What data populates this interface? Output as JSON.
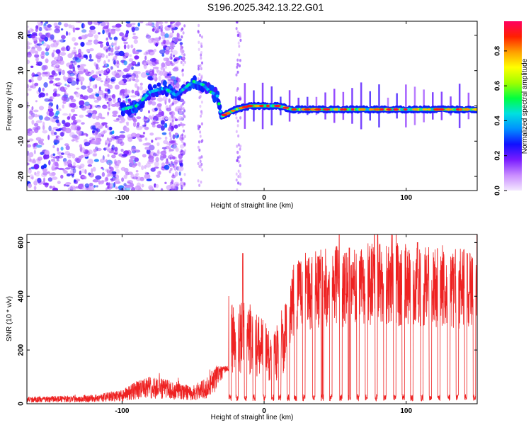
{
  "title": "S196.2025.342.13.22.G01",
  "chart_data": [
    {
      "type": "heatmap",
      "name": "spectrogram",
      "xlabel": "Height of straight line (km)",
      "ylabel": "Frequency (Hz)",
      "xlim": [
        -167,
        150
      ],
      "ylim": [
        -24,
        24
      ],
      "xticks": [
        -100,
        0,
        100
      ],
      "xtick_labels": [
        "-100",
        "0",
        "100"
      ],
      "yticks": [
        -20,
        -10,
        0,
        10,
        20
      ],
      "ytick_labels": [
        "-20",
        "-10",
        "0",
        "10",
        "20"
      ],
      "colorbar": {
        "label": "Normalized spectral amplitude",
        "range": [
          0,
          0.97
        ],
        "ticks": [
          0.0,
          0.2,
          0.4,
          0.6,
          0.8
        ],
        "tick_labels": [
          "0.0",
          "0.2",
          "0.4",
          "0.6",
          "0.8"
        ],
        "colors": [
          "#f4e8ff",
          "#c98cff",
          "#7a1cff",
          "#1010ff",
          "#0090ff",
          "#00e0e0",
          "#00ff40",
          "#a0ff00",
          "#ffff00",
          "#ffa000",
          "#ff2000",
          "#ff0060"
        ]
      },
      "ridge": {
        "x": [
          -100,
          -90,
          -80,
          -70,
          -62,
          -50,
          -43,
          -38,
          -33,
          -30,
          -25,
          -20,
          -10,
          0,
          10,
          20,
          30,
          40,
          60,
          80,
          100,
          120,
          140,
          150
        ],
        "freq_hz": [
          -1,
          0,
          4,
          5,
          3,
          7,
          6,
          4,
          3,
          -3,
          -2,
          -1,
          0,
          0,
          0,
          -1,
          -1,
          -1,
          -1,
          -1,
          -1,
          -1,
          -1,
          -1
        ]
      }
    },
    {
      "type": "line",
      "name": "snr",
      "xlabel": "Height of straight line (km)",
      "ylabel": "SNR (10 * v/v)",
      "xlim": [
        -167,
        150
      ],
      "ylim": [
        0,
        630
      ],
      "xticks": [
        -100,
        0,
        100
      ],
      "xtick_labels": [
        "-100",
        "0",
        "100"
      ],
      "yticks": [
        0,
        200,
        400,
        600
      ],
      "ytick_labels": [
        "0",
        "200",
        "400",
        "600"
      ],
      "color": "#ee2222",
      "envelope": {
        "x": [
          -167,
          -120,
          -100,
          -90,
          -80,
          -70,
          -60,
          -50,
          -40,
          -35,
          -30,
          -25,
          -20,
          -15,
          -10,
          -5,
          0,
          5,
          10,
          15,
          20,
          30,
          40,
          60,
          80,
          100,
          120,
          140,
          150
        ],
        "snr": [
          15,
          20,
          30,
          50,
          60,
          55,
          45,
          40,
          60,
          90,
          180,
          270,
          230,
          250,
          240,
          220,
          210,
          160,
          200,
          270,
          380,
          420,
          430,
          440,
          450,
          440,
          430,
          430,
          420
        ]
      },
      "dips_x": [
        -24,
        -19,
        -13,
        -7,
        0,
        6,
        11,
        17,
        22,
        28,
        35,
        41,
        47,
        54,
        60,
        66,
        72,
        79,
        85,
        92,
        98,
        104,
        111,
        117,
        123,
        130,
        136,
        142,
        148
      ],
      "peaks": [
        {
          "x": -15,
          "snr": 560
        },
        {
          "x": 41,
          "snr": 545
        },
        {
          "x": 60,
          "snr": 580
        },
        {
          "x": 80,
          "snr": 630
        },
        {
          "x": 108,
          "snr": 600
        },
        {
          "x": 143,
          "snr": 560
        }
      ]
    }
  ]
}
